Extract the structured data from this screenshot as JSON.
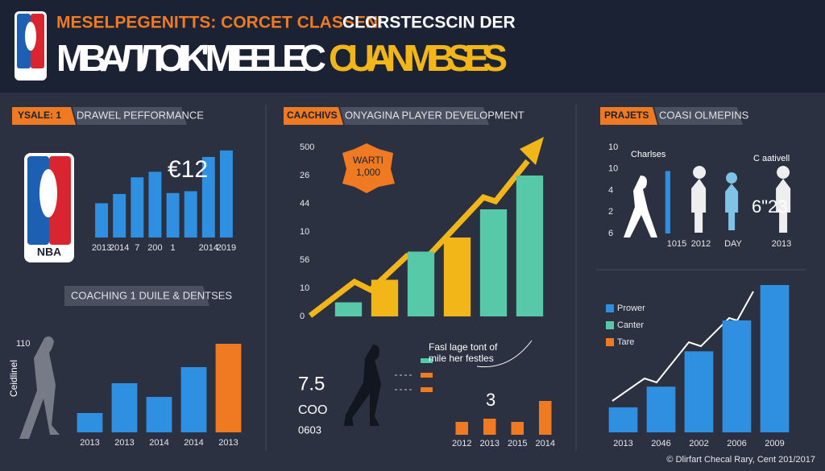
{
  "header": {
    "title_orange": "MESELPEGENITTS: CORCET CLASSEN:",
    "title_white": "CLCRSTECSCIN DER",
    "headline_white": "MBAЛЛOIK' MIEELEC",
    "headline_yellow": "CUANMBSE'S"
  },
  "chart_data": [
    {
      "type": "bar",
      "tag": "YSALE: 1",
      "title": "DRAWEL PEFFORMANCE",
      "annotation": "€12",
      "categories": [
        "2013",
        "2014",
        "7",
        "200",
        "1",
        null,
        "2014",
        "2019"
      ],
      "values": [
        37,
        47,
        65,
        71,
        48,
        50,
        87,
        94
      ],
      "colors": [
        "#2f8fe0",
        "#2f8fe0",
        "#2f8fe0",
        "#2f8fe0",
        "#2f8fe0",
        "#2f8fe0",
        "#2f8fe0",
        "#2f8fe0"
      ],
      "ylim": [
        0,
        100
      ]
    },
    {
      "type": "bar",
      "title": "COACHING 1 DUILE & DENTSES",
      "ylabel": "Ceidlinel",
      "categories": [
        "2013",
        "2013",
        "2014",
        "2014",
        "2013"
      ],
      "values": [
        24,
        61,
        44,
        81,
        110
      ],
      "colors": [
        "#2f8fe0",
        "#2f8fe0",
        "#2f8fe0",
        "#2f8fe0",
        "#f07a22"
      ],
      "ylim": [
        0,
        110
      ],
      "yticks": [
        110
      ]
    },
    {
      "type": "bar",
      "tag": "CAACHIVS",
      "title": "ONYAGINA PLAYER DEVELOPMENT",
      "badge": [
        "WARTI",
        "1,000"
      ],
      "values": [
        0.5,
        1.3,
        2.3,
        2.8,
        3.8,
        5
      ],
      "colors": [
        "#58c9a8",
        "#f2b619",
        "#58c9a8",
        "#f2b619",
        "#58c9a8",
        "#58c9a8"
      ],
      "ylim": [
        0,
        6
      ],
      "yticks": [
        {
          "value": 6,
          "label": "500"
        },
        {
          "value": 5,
          "label": "26"
        },
        {
          "value": 4,
          "label": "44"
        },
        {
          "value": 3,
          "label": "10"
        },
        {
          "value": 2,
          "label": "56"
        },
        {
          "value": 1,
          "label": "10"
        },
        0
      ]
    },
    {
      "type": "bar",
      "annotations": [
        "7.5",
        "COO",
        "0603",
        "Fasl lage tont of",
        "mile her festles",
        "3"
      ],
      "categories": [
        "2012",
        "2013",
        "2015",
        "2014"
      ],
      "values": [
        32,
        40,
        32,
        84
      ],
      "colors": [
        "#f07a22",
        "#f07a22",
        "#f07a22",
        "#f07a22"
      ],
      "ylim": [
        0,
        100
      ]
    },
    {
      "type": "bar",
      "tag": "PRAJETS",
      "title": "COASI OLMEPINS",
      "annotations": [
        "Charlses",
        "C aativell",
        "6\"23"
      ],
      "categories": [
        "1015",
        "2012",
        "DAY",
        "2013"
      ],
      "values": [
        2.9,
        null,
        null,
        null
      ],
      "colors": [
        "#2f8fe0",
        null,
        null,
        null
      ],
      "ylim": [
        0,
        4
      ],
      "yticks": [
        {
          "value": 4,
          "label": "10"
        },
        {
          "value": 3,
          "label": "10"
        },
        {
          "value": 2,
          "label": "4"
        },
        {
          "value": 1,
          "label": "2"
        },
        {
          "value": 0,
          "label": "6"
        }
      ]
    },
    {
      "type": "bar",
      "legend": [
        {
          "name": "Prower",
          "color": "#2f8fe0"
        },
        {
          "name": "Canter",
          "color": "#58c9a8"
        },
        {
          "name": "Tare",
          "color": "#f07a22"
        }
      ],
      "categories": [
        "2013",
        "2046",
        "2002",
        "2006",
        "2009"
      ],
      "values": [
        17,
        31,
        55,
        76,
        100
      ],
      "colors": [
        "#2f8fe0",
        "#2f8fe0",
        "#2f8fe0",
        "#2f8fe0",
        "#2f8fe0"
      ],
      "ylim": [
        0,
        100
      ]
    }
  ],
  "footer": "© Dlirfart Checal Rary, Cent 201/2017"
}
